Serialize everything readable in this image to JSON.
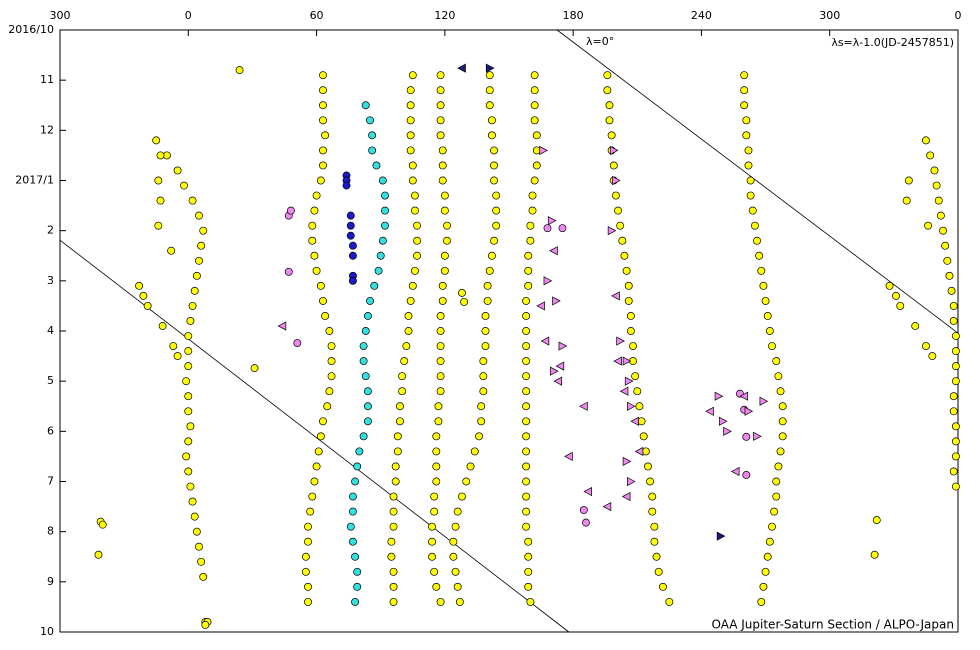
{
  "chart_data": {
    "type": "scatter",
    "annotations": [
      "λ=0°",
      "λs=λ-1.0(JD-2457851)",
      "OAA Jupiter-Saturn Section / ALPO-Japan"
    ],
    "xlim": [
      -60,
      360
    ],
    "xticks": [
      {
        "value": -60,
        "label": "300"
      },
      0,
      60,
      120,
      180,
      240,
      300,
      {
        "value": 360,
        "label": "0"
      }
    ],
    "ylim": [
      0,
      12
    ],
    "yreverse": true,
    "yticks": [
      {
        "value": 0,
        "label": "2016/10"
      },
      {
        "value": 1,
        "label": "11"
      },
      {
        "value": 2,
        "label": "12"
      },
      {
        "value": 3,
        "label": "2017/1"
      },
      {
        "value": 4,
        "label": "2"
      },
      {
        "value": 5,
        "label": "3"
      },
      {
        "value": 6,
        "label": "4"
      },
      {
        "value": 7,
        "label": "5"
      },
      {
        "value": 8,
        "label": "6"
      },
      {
        "value": 9,
        "label": "7"
      },
      {
        "value": 10,
        "label": "8"
      },
      {
        "value": 11,
        "label": "9"
      },
      {
        "value": 12,
        "label": "10"
      }
    ],
    "lines": [
      {
        "color": "#000000",
        "x": [
          172.5,
          360
        ],
        "values": [
          0,
          6.04
        ]
      },
      {
        "color": "#000000",
        "x": [
          -60,
          178
        ],
        "values": [
          4.19,
          12
        ]
      }
    ],
    "series": [
      {
        "color": "#ffff00",
        "marker": "circle",
        "x": [
          -15,
          -10,
          -5,
          -2,
          2,
          5,
          7,
          6,
          5,
          4,
          3,
          2,
          1,
          0,
          0,
          0,
          -1,
          0,
          0,
          1,
          0,
          -1,
          0,
          1,
          2,
          3,
          4,
          5,
          6,
          7,
          8
        ],
        "values": [
          2.2,
          2.5,
          2.8,
          3.1,
          3.4,
          3.7,
          4.0,
          4.3,
          4.6,
          4.9,
          5.2,
          5.5,
          5.8,
          6.1,
          6.4,
          6.7,
          7.0,
          7.3,
          7.6,
          7.9,
          8.2,
          8.5,
          8.8,
          9.1,
          9.4,
          9.7,
          10.0,
          10.3,
          10.6,
          10.9,
          11.8
        ]
      },
      {
        "color": "#ffff00",
        "marker": "circle",
        "x": [
          -13,
          -14,
          -13,
          -14,
          -8,
          -23,
          -21,
          -19,
          -12,
          -7,
          -5
        ],
        "values": [
          2.5,
          3.0,
          3.4,
          3.9,
          4.4,
          5.1,
          5.3,
          5.5,
          5.9,
          6.3,
          6.5
        ]
      },
      {
        "color": "#ffff00",
        "marker": "circle",
        "x": [
          63,
          63,
          63,
          63,
          64,
          63,
          63,
          62,
          60,
          59,
          58,
          58,
          59,
          60,
          62,
          63,
          64,
          66,
          67,
          67,
          67,
          66,
          65,
          63,
          62,
          61,
          60,
          59,
          58,
          57,
          56,
          56,
          55,
          55,
          56,
          56
        ],
        "values": [
          0.9,
          1.2,
          1.5,
          1.8,
          2.1,
          2.4,
          2.7,
          3.0,
          3.3,
          3.6,
          3.9,
          4.2,
          4.5,
          4.8,
          5.1,
          5.4,
          5.7,
          6.0,
          6.3,
          6.6,
          6.9,
          7.2,
          7.5,
          7.8,
          8.1,
          8.4,
          8.7,
          9.0,
          9.3,
          9.6,
          9.9,
          10.2,
          10.5,
          10.8,
          11.1,
          11.4
        ]
      },
      {
        "color": "#33e0e0",
        "marker": "circle",
        "x": [
          83,
          85,
          86,
          86,
          88,
          91,
          92,
          92,
          92,
          91,
          90,
          89,
          87,
          85,
          84,
          83,
          82,
          82,
          83,
          84,
          84,
          84,
          82,
          80,
          79,
          78,
          77,
          77,
          76,
          77,
          78,
          79,
          79,
          78
        ],
        "values": [
          1.5,
          1.8,
          2.1,
          2.4,
          2.7,
          3.0,
          3.3,
          3.6,
          3.9,
          4.2,
          4.5,
          4.8,
          5.1,
          5.4,
          5.7,
          6.0,
          6.3,
          6.6,
          6.9,
          7.2,
          7.5,
          7.8,
          8.1,
          8.4,
          8.7,
          9.0,
          9.3,
          9.6,
          9.9,
          10.2,
          10.5,
          10.8,
          11.1,
          11.4
        ]
      },
      {
        "color": "#1a1acc",
        "marker": "circle",
        "x": [
          74,
          74,
          74,
          76,
          76,
          76,
          77,
          77,
          77,
          77
        ],
        "values": [
          2.9,
          3.0,
          3.1,
          3.7,
          3.9,
          4.1,
          4.3,
          4.5,
          4.9,
          5.0
        ]
      },
      {
        "color": "#ffff00",
        "marker": "circle",
        "x": [
          105,
          104,
          104,
          104,
          104,
          104,
          105,
          105,
          106,
          106,
          107,
          107,
          107,
          106,
          105,
          104,
          103,
          103,
          102,
          101,
          100,
          100,
          99,
          99,
          98,
          98,
          97,
          97,
          96,
          96,
          96,
          95,
          95,
          96,
          96,
          96
        ],
        "values": [
          0.9,
          1.2,
          1.5,
          1.8,
          2.1,
          2.4,
          2.7,
          3.0,
          3.3,
          3.6,
          3.9,
          4.2,
          4.5,
          4.8,
          5.1,
          5.4,
          5.7,
          6.0,
          6.3,
          6.6,
          6.9,
          7.2,
          7.5,
          7.8,
          8.1,
          8.4,
          8.7,
          9.0,
          9.3,
          9.6,
          9.9,
          10.2,
          10.5,
          10.8,
          11.1,
          11.4
        ]
      },
      {
        "color": "#ffff00",
        "marker": "circle",
        "x": [
          118,
          118,
          118,
          118,
          118,
          119,
          119,
          119,
          120,
          120,
          121,
          121,
          120,
          120,
          119,
          119,
          118,
          118,
          118,
          118,
          118,
          118,
          117,
          117,
          116,
          116,
          116,
          116,
          115,
          115,
          114,
          114,
          114,
          115,
          116,
          118
        ],
        "values": [
          0.9,
          1.2,
          1.5,
          1.8,
          2.1,
          2.4,
          2.7,
          3.0,
          3.3,
          3.6,
          3.9,
          4.2,
          4.5,
          4.8,
          5.1,
          5.4,
          5.7,
          6.0,
          6.3,
          6.6,
          6.9,
          7.2,
          7.5,
          7.8,
          8.1,
          8.4,
          8.7,
          9.0,
          9.3,
          9.6,
          9.9,
          10.2,
          10.5,
          10.8,
          11.1,
          11.4
        ]
      },
      {
        "color": "#ffff00",
        "marker": "circle",
        "x": [
          141,
          141,
          141,
          142,
          142,
          143,
          143,
          143,
          144,
          144,
          144,
          143,
          142,
          141,
          140,
          140,
          139,
          139,
          139,
          138,
          138,
          138,
          137,
          137,
          136,
          134,
          132,
          130,
          128,
          126,
          125,
          124,
          124,
          125,
          126,
          127
        ],
        "values": [
          0.9,
          1.2,
          1.5,
          1.8,
          2.1,
          2.4,
          2.7,
          3.0,
          3.3,
          3.6,
          3.9,
          4.2,
          4.5,
          4.8,
          5.1,
          5.4,
          5.7,
          6.0,
          6.3,
          6.6,
          6.9,
          7.2,
          7.5,
          7.8,
          8.1,
          8.4,
          8.7,
          9.0,
          9.3,
          9.6,
          9.9,
          10.2,
          10.5,
          10.8,
          11.1,
          11.4
        ]
      },
      {
        "color": "#ffff00",
        "marker": "circle",
        "x": [
          162,
          162,
          162,
          162,
          163,
          163,
          163,
          162,
          161,
          161,
          160,
          160,
          159,
          159,
          159,
          158,
          158,
          158,
          158,
          158,
          158,
          158,
          158,
          158,
          158,
          158,
          158,
          158,
          158,
          158,
          158,
          159,
          159,
          159,
          159,
          160
        ],
        "values": [
          0.9,
          1.2,
          1.5,
          1.8,
          2.1,
          2.4,
          2.7,
          3.0,
          3.3,
          3.6,
          3.9,
          4.2,
          4.5,
          4.8,
          5.1,
          5.4,
          5.7,
          6.0,
          6.3,
          6.6,
          6.9,
          7.2,
          7.5,
          7.8,
          8.1,
          8.4,
          8.7,
          9.0,
          9.3,
          9.6,
          9.9,
          10.2,
          10.5,
          10.8,
          11.1,
          11.4
        ]
      },
      {
        "color": "#ffff00",
        "marker": "circle",
        "x": [
          196,
          196,
          197,
          197,
          198,
          198,
          199,
          199,
          200,
          201,
          202,
          203,
          204,
          205,
          206,
          206,
          207,
          207,
          208,
          208,
          209,
          210,
          211,
          212,
          213,
          214,
          215,
          216,
          217,
          217,
          218,
          218,
          219,
          220,
          222,
          225
        ],
        "values": [
          0.9,
          1.2,
          1.5,
          1.8,
          2.1,
          2.4,
          2.7,
          3.0,
          3.3,
          3.6,
          3.9,
          4.2,
          4.5,
          4.8,
          5.1,
          5.4,
          5.7,
          6.0,
          6.3,
          6.6,
          6.9,
          7.2,
          7.5,
          7.8,
          8.1,
          8.4,
          8.7,
          9.0,
          9.3,
          9.6,
          9.9,
          10.2,
          10.5,
          10.8,
          11.1,
          11.4
        ]
      },
      {
        "color": "#ffff00",
        "marker": "circle",
        "x": [
          260,
          260,
          260,
          261,
          261,
          262,
          262,
          263,
          263,
          264,
          265,
          266,
          267,
          268,
          269,
          270,
          271,
          272,
          273,
          275,
          276,
          277,
          278,
          278,
          278,
          277,
          276,
          275,
          275,
          274,
          273,
          272,
          271,
          270,
          269,
          268
        ],
        "values": [
          0.9,
          1.2,
          1.5,
          1.8,
          2.1,
          2.4,
          2.7,
          3.0,
          3.3,
          3.6,
          3.9,
          4.2,
          4.5,
          4.8,
          5.1,
          5.4,
          5.7,
          6.0,
          6.3,
          6.6,
          6.9,
          7.2,
          7.5,
          7.8,
          8.1,
          8.4,
          8.7,
          9.0,
          9.3,
          9.6,
          9.9,
          10.2,
          10.5,
          10.8,
          11.1,
          11.4
        ]
      },
      {
        "color": "#ffff00",
        "marker": "circle",
        "x": [
          345,
          347,
          349,
          350,
          351,
          352,
          353,
          354,
          355,
          356,
          357,
          358,
          358,
          359,
          359,
          359,
          359,
          358,
          358,
          359,
          359,
          359,
          358,
          359
        ],
        "values": [
          2.2,
          2.5,
          2.8,
          3.1,
          3.4,
          3.7,
          4.0,
          4.3,
          4.6,
          4.9,
          5.2,
          5.5,
          5.8,
          6.1,
          6.4,
          6.7,
          7.0,
          7.3,
          7.6,
          7.9,
          8.2,
          8.5,
          8.8,
          9.1
        ]
      },
      {
        "color": "#ffff00",
        "marker": "circle",
        "x": [
          337,
          336,
          346,
          328,
          331,
          333,
          340,
          345,
          348
        ],
        "values": [
          3.0,
          3.4,
          3.9,
          5.1,
          5.3,
          5.5,
          5.9,
          6.3,
          6.5
        ]
      },
      {
        "color": "#ffff00",
        "marker": "circle",
        "x": [
          24,
          31,
          -41,
          -40,
          -42,
          322,
          321,
          9,
          8,
          128,
          129
        ],
        "values": [
          0.8,
          6.74,
          9.8,
          9.86,
          10.46,
          9.77,
          10.46,
          11.8,
          11.86,
          5.24,
          5.42
        ]
      },
      {
        "color": "#ee88ee",
        "marker": "circle",
        "x": [
          47,
          48,
          47,
          51,
          185,
          186,
          260,
          261,
          261,
          258,
          175,
          168
        ],
        "values": [
          3.7,
          3.6,
          4.82,
          6.24,
          9.57,
          9.82,
          7.57,
          8.11,
          8.87,
          7.25,
          3.95,
          3.95
        ]
      },
      {
        "color": "#ee88ee",
        "marker": "triangle-right",
        "x": [
          166,
          170,
          168,
          172,
          175,
          171,
          199,
          200,
          198,
          202,
          205,
          206,
          207,
          248,
          250,
          252,
          262,
          266,
          269,
          205,
          207
        ],
        "values": [
          2.4,
          3.8,
          5.0,
          5.4,
          6.3,
          6.8,
          2.4,
          3.0,
          4.0,
          6.2,
          6.6,
          7.0,
          7.5,
          7.3,
          7.8,
          8.0,
          7.6,
          8.1,
          7.4,
          8.6,
          9.0
        ]
      },
      {
        "color": "#ee88ee",
        "marker": "triangle-left",
        "x": [
          44,
          171,
          165,
          167,
          173,
          174,
          178,
          185,
          187,
          200,
          201,
          204,
          209,
          211,
          244,
          256,
          260,
          205,
          196
        ],
        "values": [
          5.9,
          4.4,
          5.5,
          6.2,
          7.0,
          6.7,
          8.5,
          7.5,
          9.2,
          5.3,
          6.6,
          7.2,
          7.8,
          8.4,
          7.6,
          8.8,
          7.3,
          9.3,
          9.5
        ]
      },
      {
        "color": "#1a1a80",
        "marker": "triangle-right",
        "x": [
          141,
          249
        ],
        "values": [
          0.76,
          10.09
        ]
      },
      {
        "color": "#1a1a80",
        "marker": "triangle-left",
        "x": [
          128
        ],
        "values": [
          0.76
        ]
      }
    ]
  }
}
